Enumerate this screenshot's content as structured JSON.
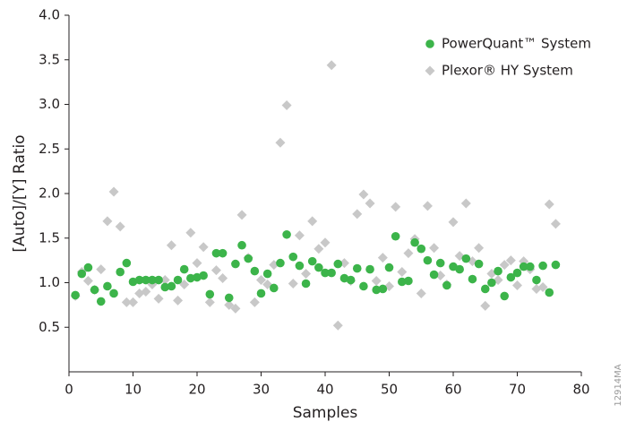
{
  "chart_data": {
    "type": "scatter",
    "y_label": "[Auto]/[Y] Ratio",
    "x_label": "Samples",
    "annotation": "12914MA",
    "x": [
      1,
      2,
      3,
      4,
      5,
      6,
      7,
      8,
      9,
      10,
      11,
      12,
      13,
      14,
      15,
      16,
      17,
      18,
      19,
      20,
      21,
      22,
      23,
      24,
      25,
      26,
      27,
      28,
      29,
      30,
      31,
      32,
      33,
      34,
      35,
      36,
      37,
      38,
      39,
      40,
      41,
      42,
      43,
      44,
      45,
      46,
      47,
      48,
      49,
      50,
      51,
      52,
      53,
      54,
      55,
      56,
      57,
      58,
      59,
      60,
      61,
      62,
      63,
      64,
      65,
      66,
      67,
      68,
      69,
      70,
      71,
      72,
      73,
      74,
      75,
      76
    ],
    "series": [
      {
        "name": "Plexor® HY System",
        "color": "#c8c8c8",
        "marker": "diamond",
        "values": [
          0.85,
          1.12,
          1.02,
          0.92,
          1.15,
          1.69,
          2.02,
          1.63,
          0.78,
          0.78,
          0.88,
          0.9,
          0.98,
          0.82,
          1.03,
          1.42,
          0.8,
          0.98,
          1.56,
          1.22,
          1.4,
          0.78,
          1.14,
          1.05,
          0.75,
          0.71,
          1.76,
          1.28,
          0.78,
          1.03,
          0.98,
          1.2,
          2.57,
          2.99,
          0.99,
          1.53,
          1.1,
          1.69,
          1.38,
          1.45,
          3.44,
          0.52,
          1.22,
          1.02,
          1.77,
          1.99,
          1.89,
          1.02,
          1.28,
          0.96,
          1.85,
          1.12,
          1.33,
          1.49,
          0.88,
          1.86,
          1.39,
          1.08,
          0.98,
          1.68,
          1.3,
          1.89,
          1.24,
          1.39,
          0.74,
          1.1,
          1.03,
          1.2,
          1.25,
          0.97,
          1.24,
          1.15,
          0.93,
          0.95,
          1.88,
          1.66
        ]
      },
      {
        "name": "PowerQuant™ System",
        "color": "#3cb44a",
        "marker": "circle",
        "values": [
          0.86,
          1.1,
          1.17,
          0.92,
          0.79,
          0.96,
          0.88,
          1.12,
          1.22,
          1.01,
          1.03,
          1.03,
          1.03,
          1.03,
          0.95,
          0.96,
          1.03,
          1.15,
          1.05,
          1.06,
          1.08,
          0.87,
          1.33,
          1.33,
          0.83,
          1.21,
          1.42,
          1.27,
          1.13,
          0.88,
          1.1,
          0.94,
          1.22,
          1.54,
          1.29,
          1.19,
          0.99,
          1.24,
          1.17,
          1.11,
          1.11,
          1.21,
          1.05,
          1.03,
          1.16,
          0.96,
          1.15,
          0.92,
          0.93,
          1.17,
          1.52,
          1.01,
          1.02,
          1.45,
          1.38,
          1.25,
          1.09,
          1.22,
          0.97,
          1.18,
          1.15,
          1.27,
          1.04,
          1.21,
          0.93,
          1.0,
          1.13,
          0.85,
          1.06,
          1.11,
          1.18,
          1.18,
          1.03,
          1.19,
          0.89,
          1.2
        ]
      }
    ],
    "xlim": [
      0,
      80
    ],
    "xticks": [
      0,
      10,
      20,
      30,
      40,
      50,
      60,
      70,
      80
    ],
    "ylim": [
      0,
      4
    ],
    "yticks": [
      {
        "value": 0.5,
        "label": "0.5"
      },
      {
        "value": 1,
        "label": "1.0"
      },
      {
        "value": 1.5,
        "label": "1.5"
      },
      {
        "value": 2,
        "label": "2.0"
      },
      {
        "value": 2.5,
        "label": "2.5"
      },
      {
        "value": 3,
        "label": "3.0"
      },
      {
        "value": 3.5,
        "label": "3.5"
      },
      {
        "value": 4,
        "label": "4.0"
      }
    ],
    "grid": false,
    "legend": "top-right"
  }
}
